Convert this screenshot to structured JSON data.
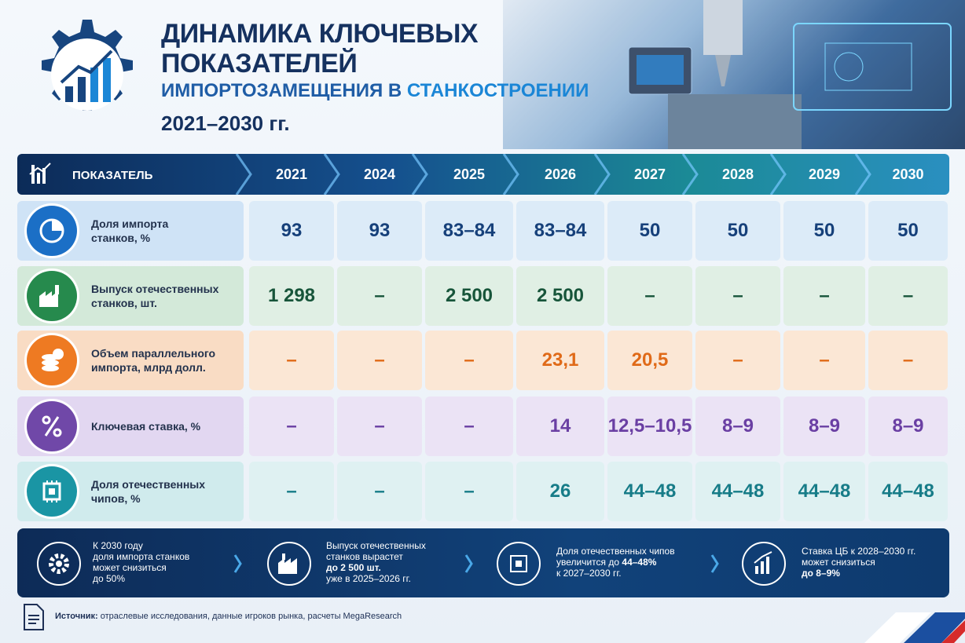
{
  "header": {
    "title_line1": "ДИНАМИКА КЛЮЧЕВЫХ",
    "title_line2": "ПОКАЗАТЕЛЕЙ",
    "subtitle_part1": "ИМПОРТОЗАМЕЩЕНИЯ В",
    "subtitle_part2": "СТАНКОСТРОЕНИИ",
    "period": "2021–2030 гг."
  },
  "table": {
    "header_label": "ПОКАЗАТЕЛЬ",
    "years": [
      "2021",
      "2024",
      "2025",
      "2026",
      "2027",
      "2028",
      "2029",
      "2030"
    ],
    "rows": [
      {
        "label_line1": "Доля импорта",
        "label_line2": "станков, %",
        "values": [
          "93",
          "93",
          "83–84",
          "83–84",
          "50",
          "50",
          "50",
          "50"
        ]
      },
      {
        "label_line1": "Выпуск отечественных",
        "label_line2": "станков, шт.",
        "values": [
          "1 298",
          "–",
          "2 500",
          "2 500",
          "–",
          "–",
          "–",
          "–"
        ]
      },
      {
        "label_line1": "Объем параллельного",
        "label_line2": "импорта, млрд долл.",
        "values": [
          "–",
          "–",
          "–",
          "23,1",
          "20,5",
          "–",
          "–",
          "–"
        ]
      },
      {
        "label_line1": "Ключевая ставка, %",
        "values": [
          "–",
          "–",
          "–",
          "14",
          "12,5–10,5",
          "8–9",
          "8–9",
          "8–9"
        ]
      },
      {
        "label_line1": "Доля отечественных",
        "label_line2": "чипов, %",
        "values": [
          "–",
          "–",
          "–",
          "26",
          "44–48",
          "44–48",
          "44–48",
          "44–48"
        ]
      }
    ]
  },
  "summary": {
    "items": [
      {
        "line1": "К 2030 году",
        "line2": "доля импорта станков",
        "line3": "может снизиться",
        "line4": "до 50%"
      },
      {
        "line1": "Выпуск отечественных",
        "line2": "станков вырастет",
        "highlight": "до 2 500 шт.",
        "line3": "уже в 2025–2026 гг."
      },
      {
        "line1": "Доля отечественных чипов",
        "line2": "увеличится до",
        "highlight": "44–48%",
        "line3": "к 2027–2030 гг."
      },
      {
        "line1": "Ставка ЦБ к 2028–2030 гг.",
        "line2": "может снизиться",
        "highlight": "до 8–9%"
      }
    ]
  },
  "source": {
    "label": "Источник:",
    "text": "отраслевые исследования, данные игроков рынка, расчеты MegaResearch"
  }
}
